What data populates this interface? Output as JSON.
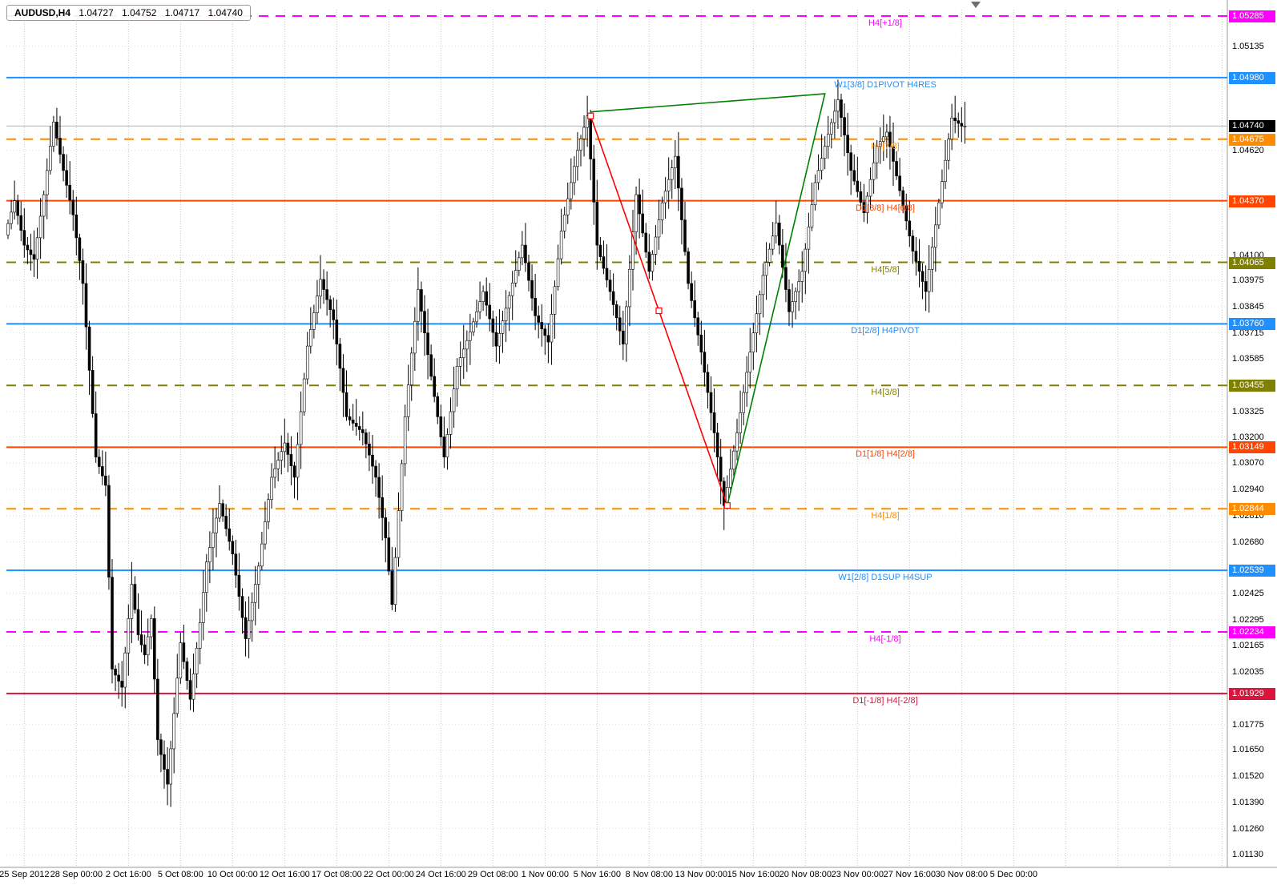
{
  "title_bar": {
    "symbol_period": "AUDUSD,H4",
    "open": "1.04727",
    "high": "1.04752",
    "low": "1.04717",
    "close": "1.04740"
  },
  "chart_data": {
    "type": "candlestick",
    "symbol": "AUDUSD",
    "timeframe": "H4",
    "bars_count": 295,
    "current_price": "1.04740",
    "y_axis": {
      "visible_min": 1.0113,
      "visible_max": 1.05285,
      "tick_labels": [
        "1.05135",
        "1.04620",
        "1.04100",
        "1.03975",
        "1.03845",
        "1.03715",
        "1.03585",
        "1.03325",
        "1.03200",
        "1.03070",
        "1.02940",
        "1.02810",
        "1.02680",
        "1.02425",
        "1.02295",
        "1.02165",
        "1.02035",
        "1.01775",
        "1.01650",
        "1.01520",
        "1.01390",
        "1.01260",
        "1.01130"
      ]
    },
    "x_axis": {
      "bars_per_label": 16,
      "date_labels": [
        "25 Sep 2012",
        "28 Sep 00:00",
        "2 Oct 16:00",
        "5 Oct 08:00",
        "10 Oct 00:00",
        "12 Oct 16:00",
        "17 Oct 08:00",
        "22 Oct 00:00",
        "24 Oct 16:00",
        "29 Oct 08:00",
        "1 Nov 00:00",
        "5 Nov 16:00",
        "8 Nov 08:00",
        "13 Nov 00:00",
        "15 Nov 16:00",
        "20 Nov 08:00",
        "23 Nov 00:00",
        "27 Nov 16:00",
        "30 Nov 08:00",
        "5 Dec 00:00"
      ]
    },
    "murrey_levels": [
      {
        "label": "H4[+1/8]",
        "price": "1.05285",
        "color": "#FF00FF",
        "style": "dashed"
      },
      {
        "label": "W1[3/8] D1PIVOT H4RES",
        "price": "1.04980",
        "color": "#1E90FF",
        "style": "solid"
      },
      {
        "label": "H4[7/8]",
        "price": "1.04675",
        "color": "#FF8C00",
        "style": "dashed"
      },
      {
        "label": "D1[3/8] H4[6/8]",
        "price": "1.04370",
        "color": "#FF4500",
        "style": "solid"
      },
      {
        "label": "H4[5/8]",
        "price": "1.04065",
        "color": "#808000",
        "style": "dashed"
      },
      {
        "label": "D1[2/8] H4PIVOT",
        "price": "1.03760",
        "color": "#1E90FF",
        "style": "solid"
      },
      {
        "label": "H4[3/8]",
        "price": "1.03455",
        "color": "#808000",
        "style": "dashed"
      },
      {
        "label": "D1[1/8] H4[2/8]",
        "price": "1.03149",
        "color": "#FF4500",
        "style": "solid"
      },
      {
        "label": "H4[1/8]",
        "price": "1.02844",
        "color": "#FF8C00",
        "style": "dashed"
      },
      {
        "label": "W1[2/8] D1SUP H4SUP",
        "price": "1.02539",
        "color": "#1E90FF",
        "style": "solid"
      },
      {
        "label": "H4[-1/8]",
        "price": "1.02234",
        "color": "#FF00FF",
        "style": "dashed"
      },
      {
        "label": "D1[-1/8] H4[-2/8]",
        "price": "1.01929",
        "color": "#DC143C",
        "style": "solid"
      }
    ],
    "price_path_swings": [
      [
        0,
        1.042
      ],
      [
        3,
        1.0437
      ],
      [
        6,
        1.0415
      ],
      [
        9,
        1.0408
      ],
      [
        12,
        1.044
      ],
      [
        15,
        1.0476
      ],
      [
        18,
        1.0452
      ],
      [
        21,
        1.043
      ],
      [
        24,
        1.0396
      ],
      [
        28,
        1.031
      ],
      [
        31,
        1.0296
      ],
      [
        33,
        1.0205
      ],
      [
        36,
        1.0196
      ],
      [
        39,
        1.0247
      ],
      [
        41,
        1.0222
      ],
      [
        43,
        1.0212
      ],
      [
        45,
        1.023
      ],
      [
        47,
        1.017
      ],
      [
        50,
        1.0148
      ],
      [
        54,
        1.0218
      ],
      [
        57,
        1.019
      ],
      [
        60,
        1.0228
      ],
      [
        62,
        1.0258
      ],
      [
        66,
        1.0287
      ],
      [
        70,
        1.0262
      ],
      [
        74,
        1.022
      ],
      [
        78,
        1.0256
      ],
      [
        82,
        1.03
      ],
      [
        86,
        1.0317
      ],
      [
        89,
        1.03
      ],
      [
        93,
        1.0365
      ],
      [
        97,
        1.0398
      ],
      [
        101,
        1.0378
      ],
      [
        105,
        1.033
      ],
      [
        110,
        1.0322
      ],
      [
        114,
        1.03
      ],
      [
        117,
        1.027
      ],
      [
        119,
        1.0237
      ],
      [
        123,
        1.033
      ],
      [
        127,
        1.0393
      ],
      [
        131,
        1.035
      ],
      [
        135,
        1.031
      ],
      [
        139,
        1.0355
      ],
      [
        143,
        1.0372
      ],
      [
        147,
        1.0392
      ],
      [
        151,
        1.0365
      ],
      [
        155,
        1.039
      ],
      [
        159,
        1.0415
      ],
      [
        163,
        1.038
      ],
      [
        167,
        1.0367
      ],
      [
        171,
        1.0422
      ],
      [
        176,
        1.0462
      ],
      [
        179,
        1.0479
      ],
      [
        182,
        1.0415
      ],
      [
        186,
        1.0392
      ],
      [
        190,
        1.0366
      ],
      [
        194,
        1.044
      ],
      [
        198,
        1.0402
      ],
      [
        202,
        1.0436
      ],
      [
        206,
        1.0459
      ],
      [
        210,
        1.0396
      ],
      [
        214,
        1.0362
      ],
      [
        218,
        1.0322
      ],
      [
        221,
        1.0286
      ],
      [
        225,
        1.0322
      ],
      [
        229,
        1.0362
      ],
      [
        233,
        1.04
      ],
      [
        237,
        1.0426
      ],
      [
        241,
        1.0382
      ],
      [
        245,
        1.0402
      ],
      [
        249,
        1.0446
      ],
      [
        253,
        1.047
      ],
      [
        256,
        1.0487
      ],
      [
        260,
        1.0452
      ],
      [
        264,
        1.0431
      ],
      [
        268,
        1.0464
      ],
      [
        271,
        1.0471
      ],
      [
        275,
        1.0442
      ],
      [
        279,
        1.0412
      ],
      [
        283,
        1.0392
      ],
      [
        287,
        1.0436
      ],
      [
        291,
        1.0478
      ],
      [
        294,
        1.0474
      ]
    ],
    "trendlines": [
      {
        "name": "green-trendline",
        "color": "#008000",
        "selected": false,
        "points": [
          [
            179,
            1.0481
          ],
          [
            251,
            1.049
          ],
          [
            221,
            1.0286
          ]
        ]
      },
      {
        "name": "red-trendline",
        "color": "#FF0000",
        "selected": true,
        "points": [
          [
            179,
            1.0479
          ],
          [
            221,
            1.0286
          ]
        ]
      }
    ]
  }
}
